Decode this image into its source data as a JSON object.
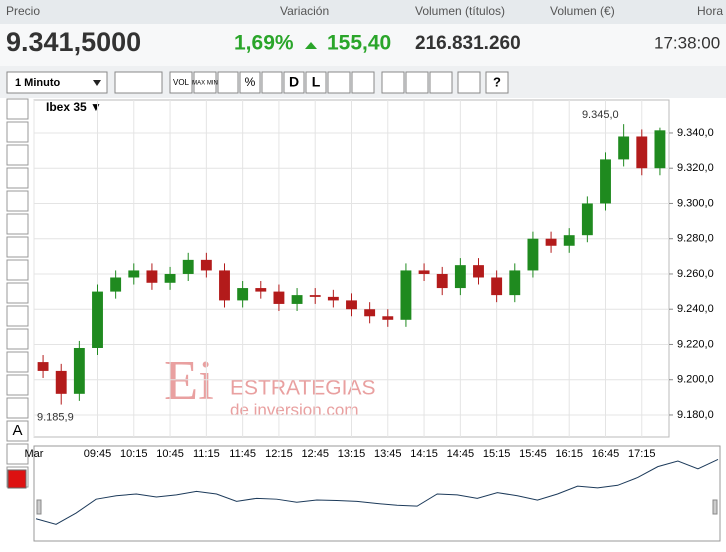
{
  "header": {
    "labels": [
      "Precio",
      "Variación",
      "Volumen (títulos)",
      "Volumen (€)",
      "Hora"
    ],
    "price": "9.341,5000",
    "change_pct": "1,69%",
    "change": "155,40",
    "volume": "216.831.260",
    "time": "17:38:00"
  },
  "toolbar": {
    "interval": "1 Minuto",
    "buttons": [
      "VOL",
      "MAX MIN",
      "%",
      "D",
      "L",
      "?"
    ]
  },
  "tools": {
    "text": "A"
  },
  "watermark": {
    "logo": "Ei",
    "line1": "ESTRATEGIAS",
    "line2": "de inversion.com"
  },
  "chart_data": {
    "type": "candlestick",
    "title": "Ibex 35 ▼",
    "categories": [
      "09:00",
      "09:15",
      "09:30",
      "09:45",
      "10:00",
      "10:15",
      "10:30",
      "10:45",
      "11:00",
      "11:15",
      "11:30",
      "11:45",
      "12:00",
      "12:15",
      "12:30",
      "12:45",
      "13:00",
      "13:15",
      "13:30",
      "13:45",
      "14:00",
      "14:15",
      "14:30",
      "14:45",
      "15:00",
      "15:15",
      "15:30",
      "15:45",
      "16:00",
      "16:15",
      "16:30",
      "16:45",
      "17:00",
      "17:15",
      "17:30"
    ],
    "open": [
      9210,
      9205,
      9192,
      9218,
      9250,
      9258,
      9262,
      9255,
      9260,
      9268,
      9262,
      9245,
      9252,
      9250,
      9243,
      9248,
      9247,
      9245,
      9240,
      9236,
      9234,
      9262,
      9260,
      9252,
      9265,
      9258,
      9248,
      9262,
      9280,
      9276,
      9282,
      9300,
      9325,
      9338,
      9320
    ],
    "high": [
      9214,
      9209,
      9222,
      9254,
      9262,
      9266,
      9266,
      9264,
      9272,
      9272,
      9266,
      9256,
      9256,
      9254,
      9252,
      9252,
      9251,
      9249,
      9244,
      9240,
      9266,
      9266,
      9264,
      9269,
      9269,
      9262,
      9266,
      9284,
      9284,
      9286,
      9304,
      9329,
      9345,
      9342,
      9343
    ],
    "low": [
      9201,
      9185.9,
      9188,
      9214,
      9246,
      9254,
      9251,
      9251,
      9256,
      9258,
      9241,
      9241,
      9246,
      9239,
      9239,
      9243,
      9241,
      9236,
      9232,
      9230,
      9230,
      9256,
      9248,
      9248,
      9254,
      9244,
      9244,
      9258,
      9272,
      9272,
      9278,
      9296,
      9321,
      9316,
      9316
    ],
    "close": [
      9205,
      9192,
      9218,
      9250,
      9258,
      9262,
      9255,
      9260,
      9268,
      9262,
      9245,
      9252,
      9250,
      9243,
      9248,
      9247,
      9245,
      9240,
      9236,
      9234,
      9262,
      9260,
      9252,
      9265,
      9258,
      9248,
      9262,
      9280,
      9276,
      9282,
      9300,
      9325,
      9338,
      9320,
      9341.5
    ],
    "up_color": "#1f8a1f",
    "down_color": "#b31b1b",
    "grid": true,
    "ylim": [
      9167.5,
      9358.7
    ],
    "yticks": [
      {
        "value": 9180,
        "label": "9.180,0"
      },
      {
        "value": 9200,
        "label": "9.200,0"
      },
      {
        "value": 9220,
        "label": "9.220,0"
      },
      {
        "value": 9240,
        "label": "9.240,0"
      },
      {
        "value": 9260,
        "label": "9.260,0"
      },
      {
        "value": 9280,
        "label": "9.280,0"
      },
      {
        "value": 9300,
        "label": "9.300,0"
      },
      {
        "value": 9320,
        "label": "9.320,0"
      },
      {
        "value": 9340,
        "label": "9.340,0"
      }
    ],
    "xticks": [
      {
        "value": "09:00",
        "label": "Mar"
      },
      "09:45",
      "10:15",
      "10:45",
      "11:15",
      "11:45",
      "12:15",
      "12:45",
      "13:15",
      "13:45",
      "14:15",
      "14:45",
      "15:15",
      "15:45",
      "16:15",
      "16:45",
      "17:15"
    ],
    "annotations": [
      {
        "value": 9345,
        "label": "9.345,0"
      },
      {
        "value": 9185.9,
        "label": "9.185,9"
      }
    ]
  }
}
